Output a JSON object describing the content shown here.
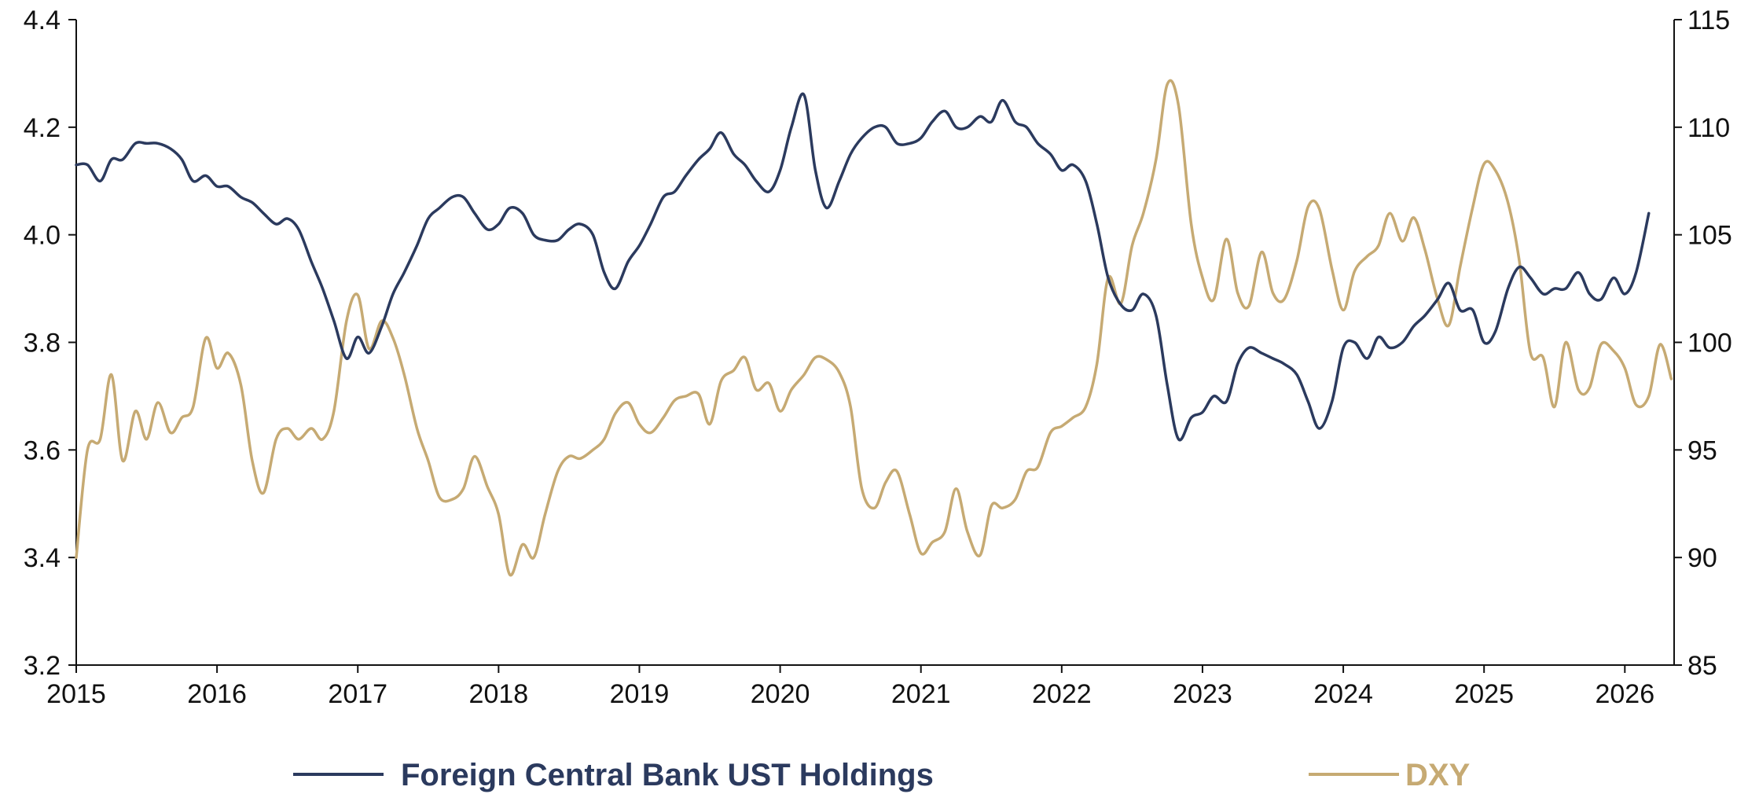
{
  "chart_data": {
    "type": "line",
    "x_range": [
      2015.0,
      2026.35
    ],
    "x_ticks": [
      "2015",
      "2016",
      "2017",
      "2018",
      "2019",
      "2020",
      "2021",
      "2022",
      "2023",
      "2024",
      "2025",
      "2026"
    ],
    "y_left": {
      "range": [
        3.2,
        4.4
      ],
      "ticks": [
        "3.2",
        "3.4",
        "3.6",
        "3.8",
        "4.0",
        "4.2",
        "4.4"
      ]
    },
    "y_right": {
      "range": [
        85,
        115
      ],
      "ticks": [
        "85",
        "90",
        "95",
        "100",
        "105",
        "110",
        "115"
      ]
    },
    "legend_position": "bottom",
    "grid": false,
    "series": [
      {
        "name": "Foreign Central Bank UST Holdings",
        "axis": "left",
        "color": "#2b3a5e",
        "points": [
          [
            2015.0,
            4.13
          ],
          [
            2015.08,
            4.13
          ],
          [
            2015.17,
            4.1
          ],
          [
            2015.25,
            4.14
          ],
          [
            2015.33,
            4.14
          ],
          [
            2015.42,
            4.17
          ],
          [
            2015.5,
            4.17
          ],
          [
            2015.58,
            4.17
          ],
          [
            2015.67,
            4.16
          ],
          [
            2015.75,
            4.14
          ],
          [
            2015.83,
            4.1
          ],
          [
            2015.92,
            4.11
          ],
          [
            2016.0,
            4.09
          ],
          [
            2016.08,
            4.09
          ],
          [
            2016.17,
            4.07
          ],
          [
            2016.25,
            4.06
          ],
          [
            2016.33,
            4.04
          ],
          [
            2016.42,
            4.02
          ],
          [
            2016.5,
            4.03
          ],
          [
            2016.58,
            4.01
          ],
          [
            2016.67,
            3.95
          ],
          [
            2016.75,
            3.9
          ],
          [
            2016.83,
            3.84
          ],
          [
            2016.92,
            3.77
          ],
          [
            2017.0,
            3.81
          ],
          [
            2017.08,
            3.78
          ],
          [
            2017.17,
            3.83
          ],
          [
            2017.25,
            3.89
          ],
          [
            2017.33,
            3.93
          ],
          [
            2017.42,
            3.98
          ],
          [
            2017.5,
            4.03
          ],
          [
            2017.58,
            4.05
          ],
          [
            2017.67,
            4.07
          ],
          [
            2017.75,
            4.07
          ],
          [
            2017.83,
            4.04
          ],
          [
            2017.92,
            4.01
          ],
          [
            2018.0,
            4.02
          ],
          [
            2018.08,
            4.05
          ],
          [
            2018.17,
            4.04
          ],
          [
            2018.25,
            4.0
          ],
          [
            2018.33,
            3.99
          ],
          [
            2018.42,
            3.99
          ],
          [
            2018.5,
            4.01
          ],
          [
            2018.58,
            4.02
          ],
          [
            2018.67,
            4.0
          ],
          [
            2018.75,
            3.93
          ],
          [
            2018.83,
            3.9
          ],
          [
            2018.92,
            3.95
          ],
          [
            2019.0,
            3.98
          ],
          [
            2019.08,
            4.02
          ],
          [
            2019.17,
            4.07
          ],
          [
            2019.25,
            4.08
          ],
          [
            2019.33,
            4.11
          ],
          [
            2019.42,
            4.14
          ],
          [
            2019.5,
            4.16
          ],
          [
            2019.58,
            4.19
          ],
          [
            2019.67,
            4.15
          ],
          [
            2019.75,
            4.13
          ],
          [
            2019.83,
            4.1
          ],
          [
            2019.92,
            4.08
          ],
          [
            2020.0,
            4.12
          ],
          [
            2020.08,
            4.2
          ],
          [
            2020.17,
            4.26
          ],
          [
            2020.25,
            4.12
          ],
          [
            2020.33,
            4.05
          ],
          [
            2020.42,
            4.1
          ],
          [
            2020.5,
            4.15
          ],
          [
            2020.58,
            4.18
          ],
          [
            2020.67,
            4.2
          ],
          [
            2020.75,
            4.2
          ],
          [
            2020.83,
            4.17
          ],
          [
            2020.92,
            4.17
          ],
          [
            2021.0,
            4.18
          ],
          [
            2021.08,
            4.21
          ],
          [
            2021.17,
            4.23
          ],
          [
            2021.25,
            4.2
          ],
          [
            2021.33,
            4.2
          ],
          [
            2021.42,
            4.22
          ],
          [
            2021.5,
            4.21
          ],
          [
            2021.58,
            4.25
          ],
          [
            2021.67,
            4.21
          ],
          [
            2021.75,
            4.2
          ],
          [
            2021.83,
            4.17
          ],
          [
            2021.92,
            4.15
          ],
          [
            2022.0,
            4.12
          ],
          [
            2022.08,
            4.13
          ],
          [
            2022.17,
            4.1
          ],
          [
            2022.25,
            4.02
          ],
          [
            2022.33,
            3.92
          ],
          [
            2022.42,
            3.87
          ],
          [
            2022.5,
            3.86
          ],
          [
            2022.58,
            3.89
          ],
          [
            2022.67,
            3.85
          ],
          [
            2022.75,
            3.72
          ],
          [
            2022.83,
            3.62
          ],
          [
            2022.92,
            3.66
          ],
          [
            2023.0,
            3.67
          ],
          [
            2023.08,
            3.7
          ],
          [
            2023.17,
            3.69
          ],
          [
            2023.25,
            3.76
          ],
          [
            2023.33,
            3.79
          ],
          [
            2023.42,
            3.78
          ],
          [
            2023.5,
            3.77
          ],
          [
            2023.58,
            3.76
          ],
          [
            2023.67,
            3.74
          ],
          [
            2023.75,
            3.69
          ],
          [
            2023.83,
            3.64
          ],
          [
            2023.92,
            3.69
          ],
          [
            2024.0,
            3.79
          ],
          [
            2024.08,
            3.8
          ],
          [
            2024.17,
            3.77
          ],
          [
            2024.25,
            3.81
          ],
          [
            2024.33,
            3.79
          ],
          [
            2024.42,
            3.8
          ],
          [
            2024.5,
            3.83
          ],
          [
            2024.58,
            3.85
          ],
          [
            2024.67,
            3.88
          ],
          [
            2024.75,
            3.91
          ],
          [
            2024.83,
            3.86
          ],
          [
            2024.92,
            3.86
          ],
          [
            2025.0,
            3.8
          ],
          [
            2025.08,
            3.82
          ],
          [
            2025.17,
            3.9
          ],
          [
            2025.25,
            3.94
          ],
          [
            2025.33,
            3.92
          ],
          [
            2025.42,
            3.89
          ],
          [
            2025.5,
            3.9
          ],
          [
            2025.58,
            3.9
          ],
          [
            2025.67,
            3.93
          ],
          [
            2025.75,
            3.89
          ],
          [
            2025.83,
            3.88
          ],
          [
            2025.92,
            3.92
          ],
          [
            2026.0,
            3.89
          ],
          [
            2026.08,
            3.93
          ],
          [
            2026.17,
            4.04
          ]
        ]
      },
      {
        "name": "DXY",
        "axis": "right",
        "color": "#c6aa73",
        "points": [
          [
            2015.0,
            90.0
          ],
          [
            2015.08,
            95.0
          ],
          [
            2015.17,
            95.5
          ],
          [
            2015.25,
            98.5
          ],
          [
            2015.33,
            94.5
          ],
          [
            2015.42,
            96.8
          ],
          [
            2015.5,
            95.5
          ],
          [
            2015.58,
            97.2
          ],
          [
            2015.67,
            95.8
          ],
          [
            2015.75,
            96.5
          ],
          [
            2015.83,
            97.0
          ],
          [
            2015.92,
            100.2
          ],
          [
            2016.0,
            98.8
          ],
          [
            2016.08,
            99.5
          ],
          [
            2016.17,
            98.0
          ],
          [
            2016.25,
            94.5
          ],
          [
            2016.33,
            93.0
          ],
          [
            2016.42,
            95.5
          ],
          [
            2016.5,
            96.0
          ],
          [
            2016.58,
            95.5
          ],
          [
            2016.67,
            96.0
          ],
          [
            2016.75,
            95.5
          ],
          [
            2016.83,
            96.8
          ],
          [
            2016.92,
            101.0
          ],
          [
            2017.0,
            102.2
          ],
          [
            2017.08,
            99.7
          ],
          [
            2017.17,
            101.0
          ],
          [
            2017.25,
            100.2
          ],
          [
            2017.33,
            98.5
          ],
          [
            2017.42,
            96.0
          ],
          [
            2017.5,
            94.5
          ],
          [
            2017.58,
            92.8
          ],
          [
            2017.67,
            92.7
          ],
          [
            2017.75,
            93.2
          ],
          [
            2017.83,
            94.7
          ],
          [
            2017.92,
            93.3
          ],
          [
            2018.0,
            92.0
          ],
          [
            2018.08,
            89.2
          ],
          [
            2018.17,
            90.6
          ],
          [
            2018.25,
            90.0
          ],
          [
            2018.33,
            92.0
          ],
          [
            2018.42,
            94.0
          ],
          [
            2018.5,
            94.7
          ],
          [
            2018.58,
            94.6
          ],
          [
            2018.67,
            95.0
          ],
          [
            2018.75,
            95.5
          ],
          [
            2018.83,
            96.7
          ],
          [
            2018.92,
            97.2
          ],
          [
            2019.0,
            96.2
          ],
          [
            2019.08,
            95.8
          ],
          [
            2019.17,
            96.5
          ],
          [
            2019.25,
            97.3
          ],
          [
            2019.33,
            97.5
          ],
          [
            2019.42,
            97.6
          ],
          [
            2019.5,
            96.2
          ],
          [
            2019.58,
            98.2
          ],
          [
            2019.67,
            98.7
          ],
          [
            2019.75,
            99.3
          ],
          [
            2019.83,
            97.8
          ],
          [
            2019.92,
            98.1
          ],
          [
            2020.0,
            96.8
          ],
          [
            2020.08,
            97.8
          ],
          [
            2020.17,
            98.5
          ],
          [
            2020.25,
            99.3
          ],
          [
            2020.33,
            99.2
          ],
          [
            2020.42,
            98.6
          ],
          [
            2020.5,
            97.0
          ],
          [
            2020.58,
            93.2
          ],
          [
            2020.67,
            92.3
          ],
          [
            2020.75,
            93.5
          ],
          [
            2020.83,
            94.0
          ],
          [
            2020.92,
            92.0
          ],
          [
            2021.0,
            90.2
          ],
          [
            2021.08,
            90.7
          ],
          [
            2021.17,
            91.2
          ],
          [
            2021.25,
            93.2
          ],
          [
            2021.33,
            91.2
          ],
          [
            2021.42,
            90.1
          ],
          [
            2021.5,
            92.4
          ],
          [
            2021.58,
            92.3
          ],
          [
            2021.67,
            92.7
          ],
          [
            2021.75,
            94.0
          ],
          [
            2021.83,
            94.2
          ],
          [
            2021.92,
            95.8
          ],
          [
            2022.0,
            96.1
          ],
          [
            2022.08,
            96.5
          ],
          [
            2022.17,
            97.0
          ],
          [
            2022.25,
            99.0
          ],
          [
            2022.33,
            103.0
          ],
          [
            2022.42,
            101.8
          ],
          [
            2022.5,
            104.5
          ],
          [
            2022.58,
            106.0
          ],
          [
            2022.67,
            108.5
          ],
          [
            2022.75,
            112.0
          ],
          [
            2022.83,
            111.0
          ],
          [
            2022.92,
            105.5
          ],
          [
            2023.0,
            103.0
          ],
          [
            2023.08,
            102.0
          ],
          [
            2023.17,
            104.8
          ],
          [
            2023.25,
            102.3
          ],
          [
            2023.33,
            101.7
          ],
          [
            2023.42,
            104.2
          ],
          [
            2023.5,
            102.3
          ],
          [
            2023.58,
            102.0
          ],
          [
            2023.67,
            103.8
          ],
          [
            2023.75,
            106.3
          ],
          [
            2023.83,
            106.2
          ],
          [
            2023.92,
            103.4
          ],
          [
            2024.0,
            101.5
          ],
          [
            2024.08,
            103.3
          ],
          [
            2024.17,
            104.0
          ],
          [
            2024.25,
            104.5
          ],
          [
            2024.33,
            106.0
          ],
          [
            2024.42,
            104.7
          ],
          [
            2024.5,
            105.8
          ],
          [
            2024.58,
            104.3
          ],
          [
            2024.67,
            102.0
          ],
          [
            2024.75,
            100.8
          ],
          [
            2024.83,
            103.5
          ],
          [
            2024.92,
            106.3
          ],
          [
            2025.0,
            108.3
          ],
          [
            2025.08,
            108.0
          ],
          [
            2025.17,
            106.5
          ],
          [
            2025.25,
            103.8
          ],
          [
            2025.33,
            99.5
          ],
          [
            2025.42,
            99.3
          ],
          [
            2025.5,
            97.0
          ],
          [
            2025.58,
            100.0
          ],
          [
            2025.67,
            97.8
          ],
          [
            2025.75,
            97.9
          ],
          [
            2025.83,
            99.9
          ],
          [
            2025.92,
            99.6
          ],
          [
            2026.0,
            98.8
          ],
          [
            2026.08,
            97.1
          ],
          [
            2026.17,
            97.5
          ],
          [
            2026.25,
            99.9
          ],
          [
            2026.33,
            98.3
          ]
        ]
      }
    ]
  }
}
